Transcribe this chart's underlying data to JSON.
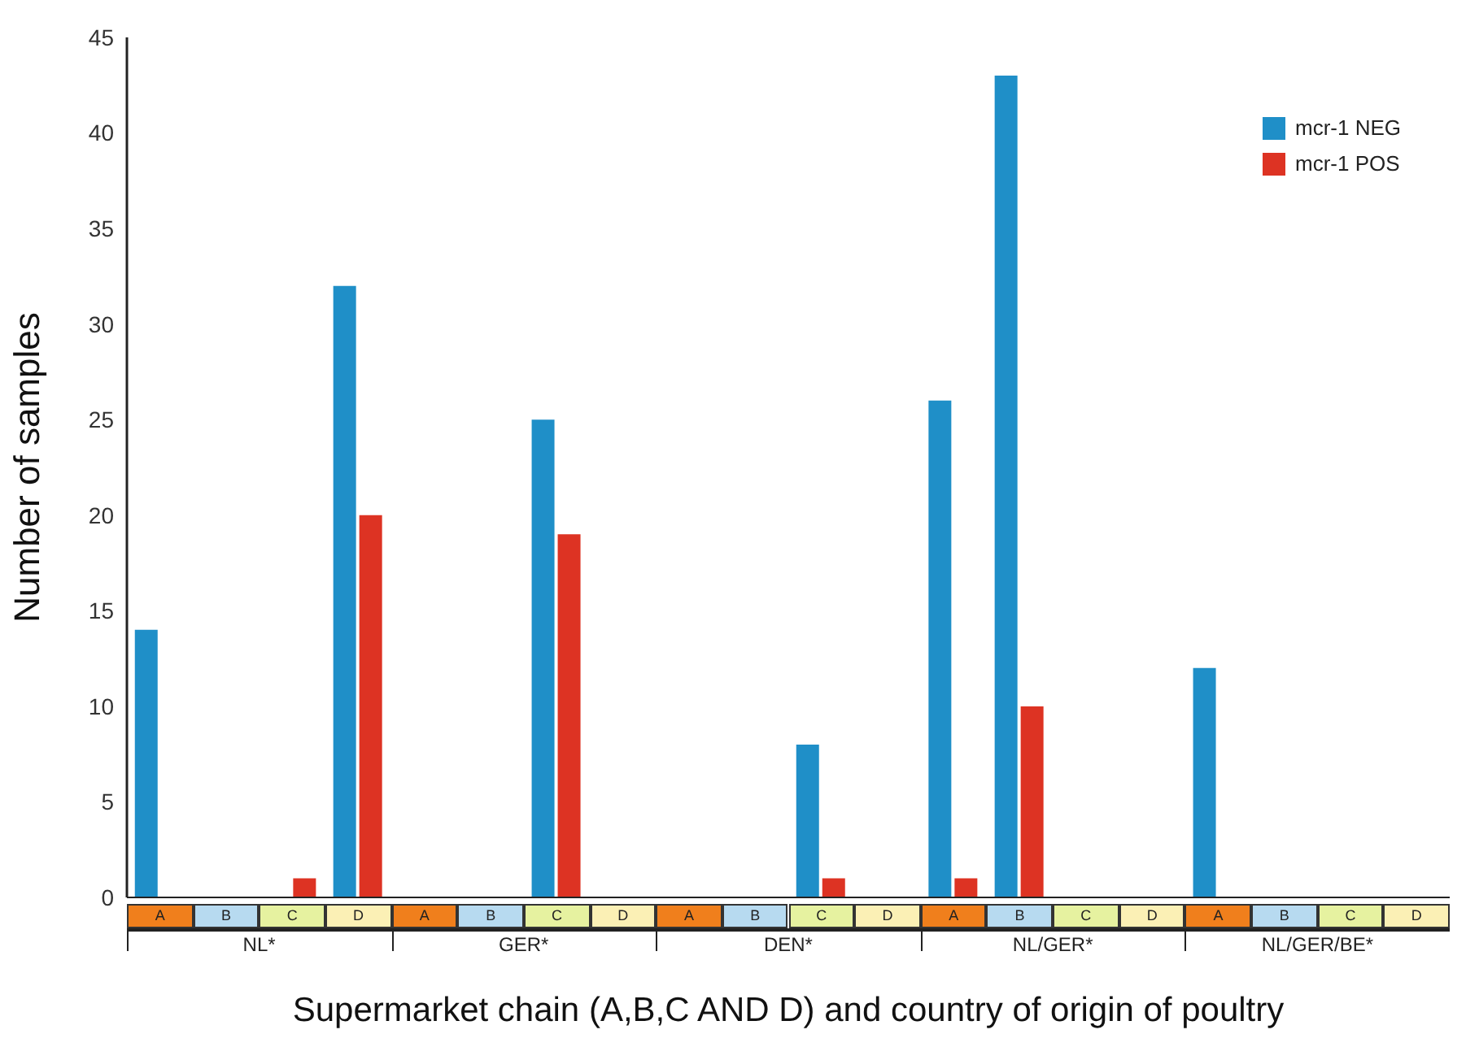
{
  "chart_data": {
    "type": "bar",
    "xlabel": "Supermarket chain (A,B,C AND D) and country of origin of poultry",
    "ylabel": "Number of samples",
    "categories": [
      "A",
      "B",
      "C",
      "D",
      "A",
      "B",
      "C",
      "D",
      "A",
      "B",
      "C",
      "D",
      "A",
      "B",
      "C",
      "D",
      "A",
      "B",
      "C",
      "D"
    ],
    "series": [
      {
        "name": "mcr-1 NEG",
        "color": "#1f8fc8",
        "values": [
          14,
          0,
          0,
          32,
          0,
          0,
          25,
          0,
          0,
          0,
          8,
          0,
          26,
          43,
          0,
          0,
          12,
          0,
          0,
          0
        ]
      },
      {
        "name": "mcr-1 POS",
        "color": "#dd3323",
        "values": [
          0,
          0,
          1,
          20,
          0,
          0,
          19,
          0,
          0,
          0,
          1,
          0,
          1,
          10,
          0,
          0,
          0,
          0,
          0,
          0
        ]
      }
    ],
    "annotations": [
      "NL*",
      "GER*",
      "DEN*",
      "NL/GER*",
      "NL/GER/BE*"
    ],
    "ylim": [
      0,
      45
    ],
    "yticks": [
      0,
      5,
      10,
      15,
      20,
      25,
      30,
      35,
      40,
      45
    ],
    "grid": false,
    "legend": "top right"
  }
}
